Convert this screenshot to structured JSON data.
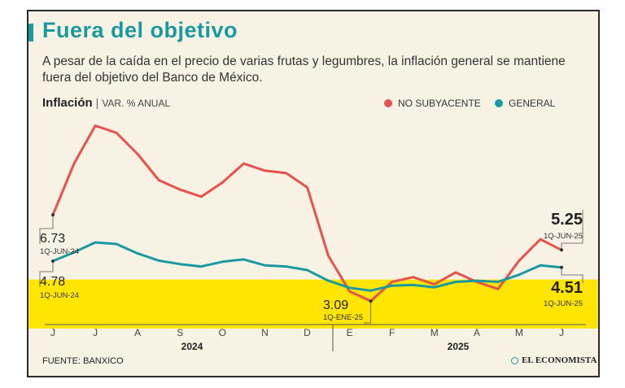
{
  "header": {
    "title": "Fuera del objetivo",
    "subtitle": "A pesar de la caída en el precio de varias frutas y legumbres, la inflación general se mantiene fuera del objetivo del Banco de México."
  },
  "chart_title": {
    "main": "Inflación",
    "separator": "|",
    "unit": "VAR. % ANUAL"
  },
  "legend": [
    {
      "label": "NO SUBYACENTE",
      "color": "#e9514d"
    },
    {
      "label": "GENERAL",
      "color": "#1a9aa0"
    }
  ],
  "footer": {
    "source": "FUENTE: BANXICO",
    "logo": "EL ECONOMISTA"
  },
  "chart_data": {
    "type": "line",
    "title": "Inflación",
    "ylabel": "VAR. % ANUAL",
    "ylim": [
      2.2,
      11.0
    ],
    "target_band": {
      "from": 2.0,
      "to": 4.0,
      "color": "#ffe500"
    },
    "x_months": [
      "J",
      "J",
      "A",
      "S",
      "O",
      "N",
      "D",
      "E",
      "F",
      "M",
      "A",
      "M",
      "J"
    ],
    "x_years": [
      "2024",
      "2025"
    ],
    "x": [
      0,
      0.5,
      1,
      1.5,
      2,
      2.5,
      3,
      3.5,
      4,
      4.5,
      5,
      5.5,
      6,
      6.5,
      7,
      7.5,
      8,
      8.5,
      9,
      9.5,
      10,
      10.5,
      11,
      11.5,
      12
    ],
    "series": [
      {
        "name": "NO SUBYACENTE",
        "color": "#e9514d",
        "values": [
          6.73,
          8.9,
          10.5,
          10.2,
          9.3,
          8.2,
          7.8,
          7.5,
          8.1,
          8.9,
          8.6,
          8.5,
          7.9,
          5.0,
          3.5,
          3.09,
          3.9,
          4.1,
          3.8,
          4.3,
          3.9,
          3.6,
          4.8,
          5.7,
          5.25
        ]
      },
      {
        "name": "GENERAL",
        "color": "#1a9aa0",
        "values": [
          4.78,
          5.15,
          5.57,
          5.5,
          5.1,
          4.8,
          4.65,
          4.55,
          4.75,
          4.85,
          4.6,
          4.55,
          4.4,
          3.95,
          3.65,
          3.53,
          3.74,
          3.77,
          3.67,
          3.9,
          3.95,
          3.9,
          4.2,
          4.6,
          4.51
        ]
      }
    ],
    "annotations": [
      {
        "series": 0,
        "index": 0,
        "value": "6.73",
        "date": "1Q-JUN-24"
      },
      {
        "series": 1,
        "index": 0,
        "value": "4.78",
        "date": "1Q-JUN-24"
      },
      {
        "series": 0,
        "index": 15,
        "value": "3.09",
        "date": "1Q-ENE-25"
      },
      {
        "series": 0,
        "index": 24,
        "value": "5.25",
        "date": "1Q-JUN-25"
      },
      {
        "series": 1,
        "index": 24,
        "value": "4.51",
        "date": "1Q-JUN-25"
      }
    ]
  }
}
